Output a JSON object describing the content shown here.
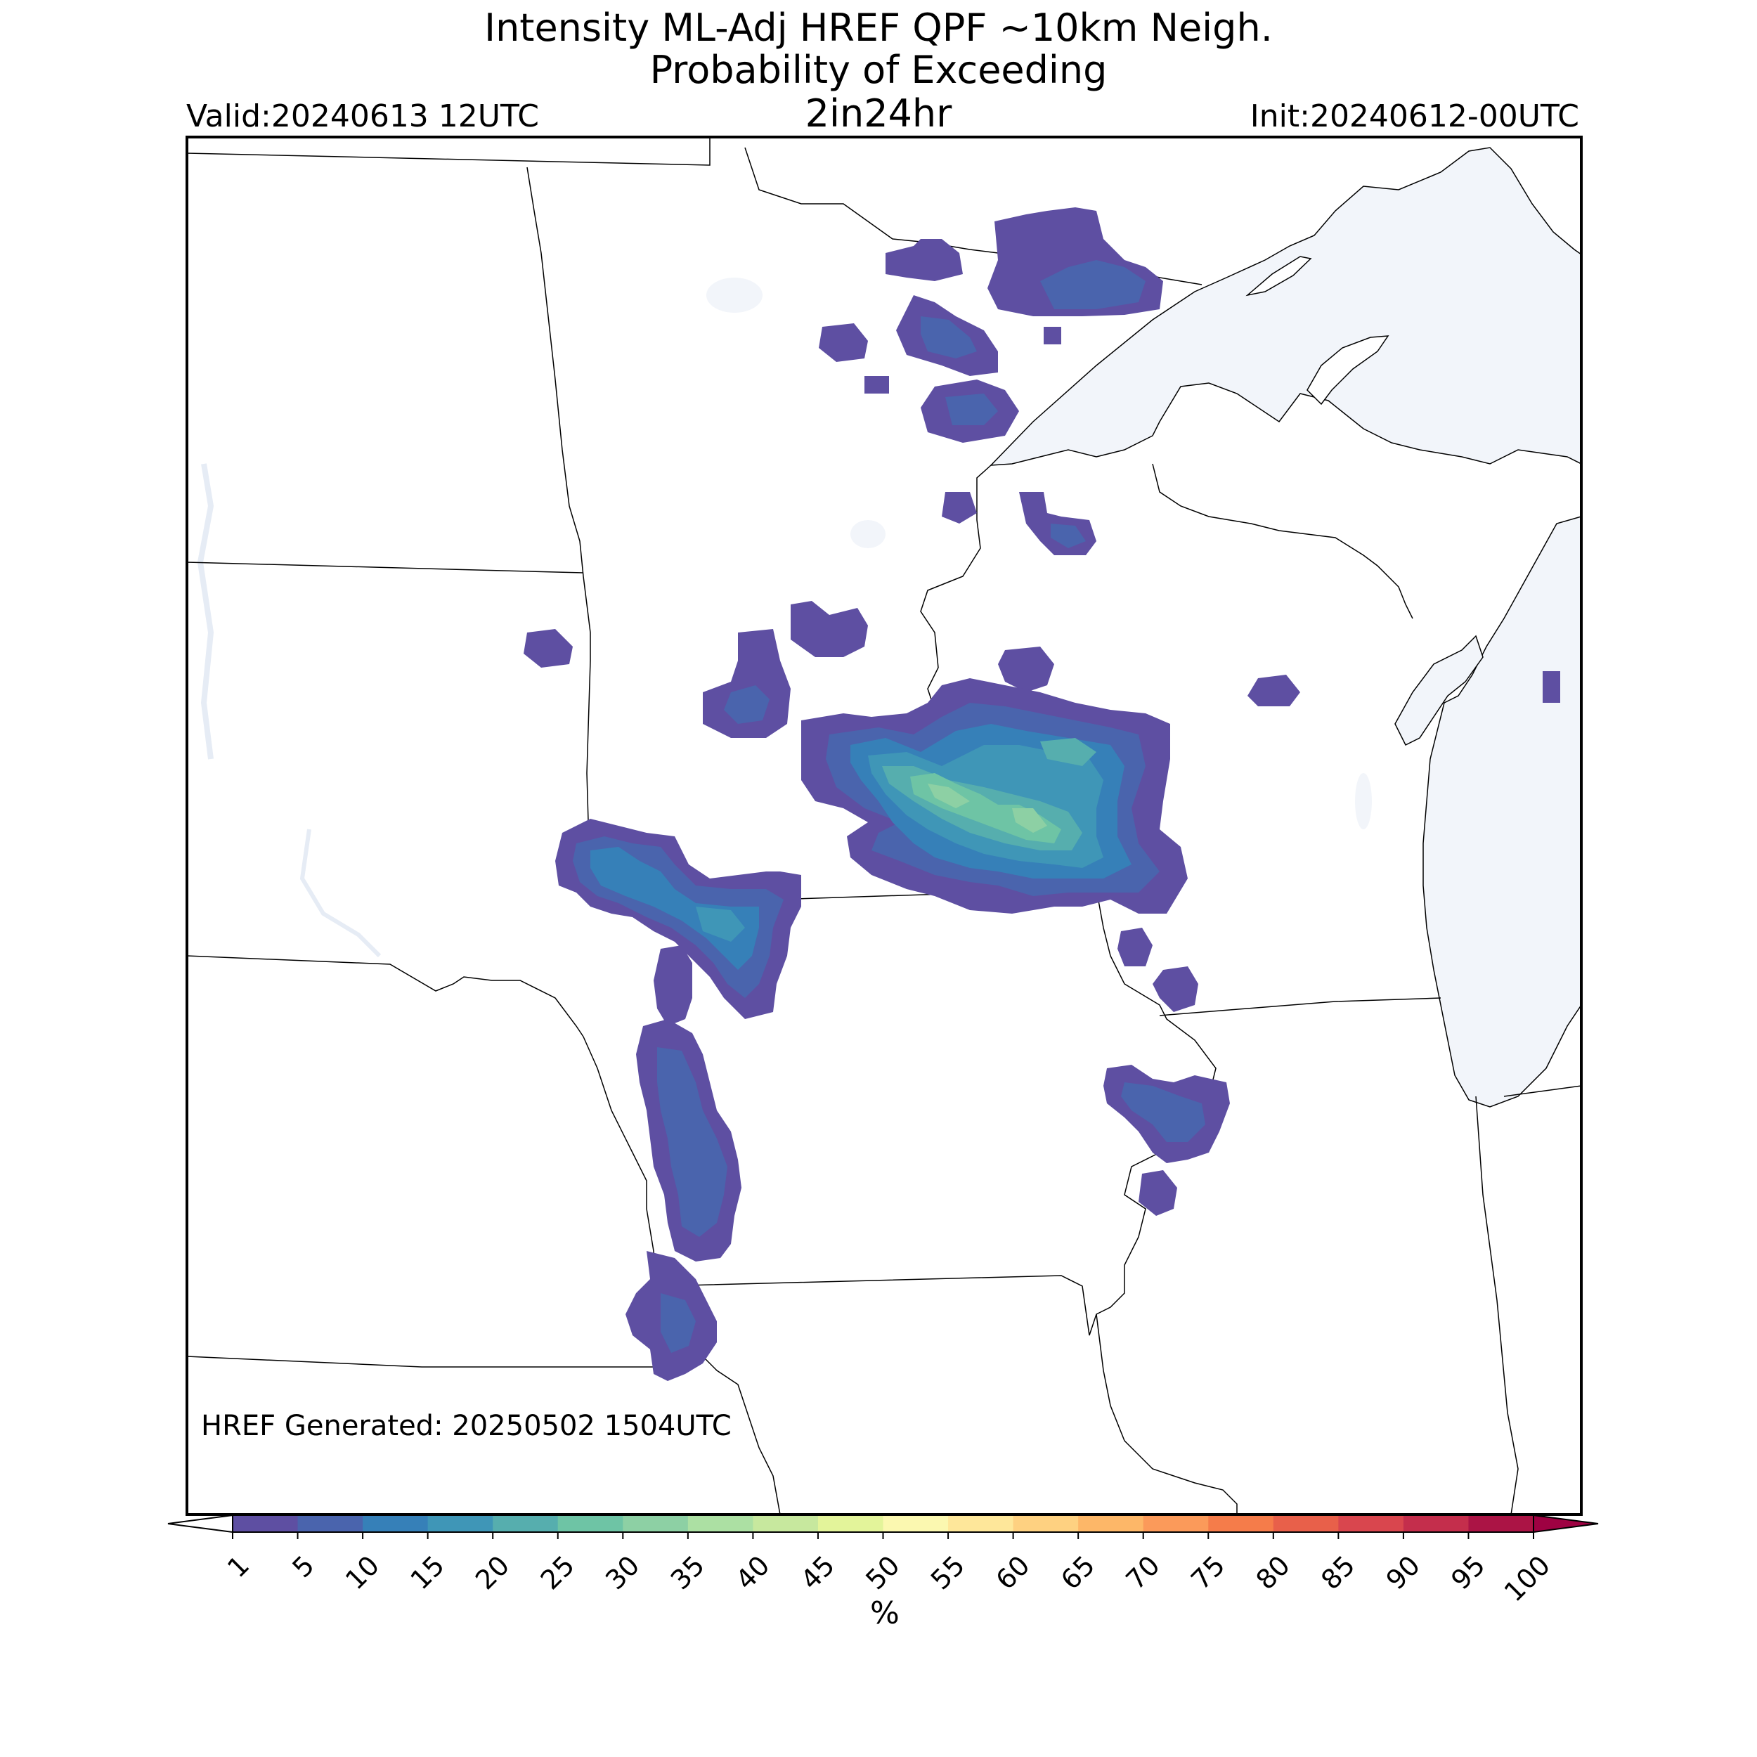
{
  "title": {
    "line1": "Intensity ML-Adj HREF QPF ~10km Neigh.",
    "line2": "Probability of Exceeding",
    "line3": "2in24hr"
  },
  "valid": "Valid:20240613 12UTC",
  "init": "Init:20240612-00UTC",
  "generated": "HREF Generated: 20250502 1504UTC",
  "colorbar": {
    "label": "%",
    "ticks": [
      "1",
      "5",
      "10",
      "15",
      "20",
      "25",
      "30",
      "35",
      "40",
      "45",
      "50",
      "55",
      "60",
      "65",
      "70",
      "75",
      "80",
      "85",
      "90",
      "95",
      "100"
    ],
    "colors": [
      "#5e4fa2",
      "#4a64ad",
      "#3680b8",
      "#3f96b7",
      "#56aeae",
      "#6ec4a5",
      "#8dd0a4",
      "#ace0a3",
      "#c7e89e",
      "#e3f49a",
      "#fbf8b0",
      "#fee79a",
      "#fed181",
      "#fdb768",
      "#fb9a5a",
      "#f57c4a",
      "#e8604a",
      "#d9464e",
      "#c42e4c",
      "#ab1445"
    ],
    "under_color": "#ffffff",
    "over_color": "#9e0142"
  },
  "map": {
    "land_color": "#ffffff",
    "water_color": "#f2f5fa",
    "border_color": "#000000"
  }
}
